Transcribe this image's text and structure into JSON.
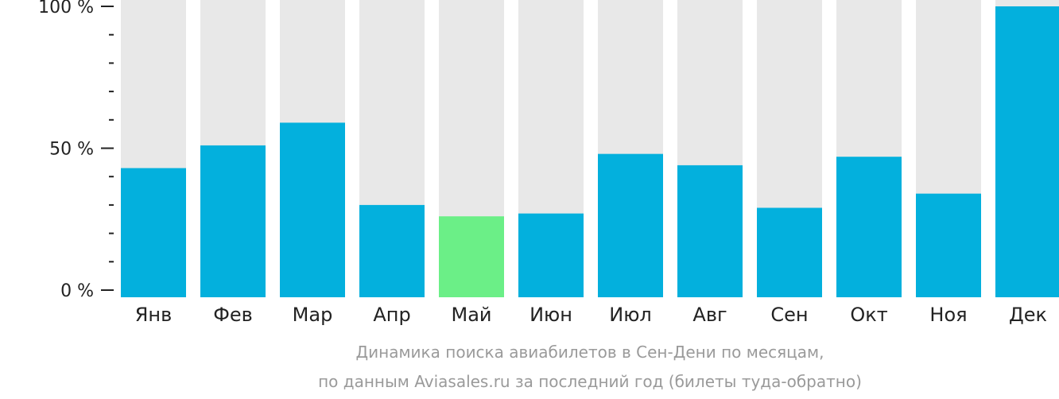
{
  "chart_data": {
    "type": "bar",
    "title": "Динамика поиска авиабилетов в Сен-Дени по месяцам,",
    "subtitle": "по данным Aviasales.ru за последний год (билеты туда-обратно)",
    "categories": [
      "Янв",
      "Фев",
      "Мар",
      "Апр",
      "Май",
      "Июн",
      "Июл",
      "Авг",
      "Сен",
      "Окт",
      "Ноя",
      "Дек"
    ],
    "values": [
      43,
      51,
      59,
      30,
      26,
      27,
      48,
      44,
      29,
      47,
      34,
      100
    ],
    "ylim": [
      0,
      100
    ],
    "yticks": [
      {
        "value": 0,
        "label": "0 %"
      },
      {
        "value": 50,
        "label": "50 %"
      },
      {
        "value": 100,
        "label": "100 %"
      }
    ],
    "highlight_category": "Май",
    "colors": {
      "bar": "#03b0dd",
      "highlight": "#6bef87",
      "background_bar": "#e8e8e8",
      "axis": "#222222"
    },
    "grid": false,
    "legend": "none"
  }
}
